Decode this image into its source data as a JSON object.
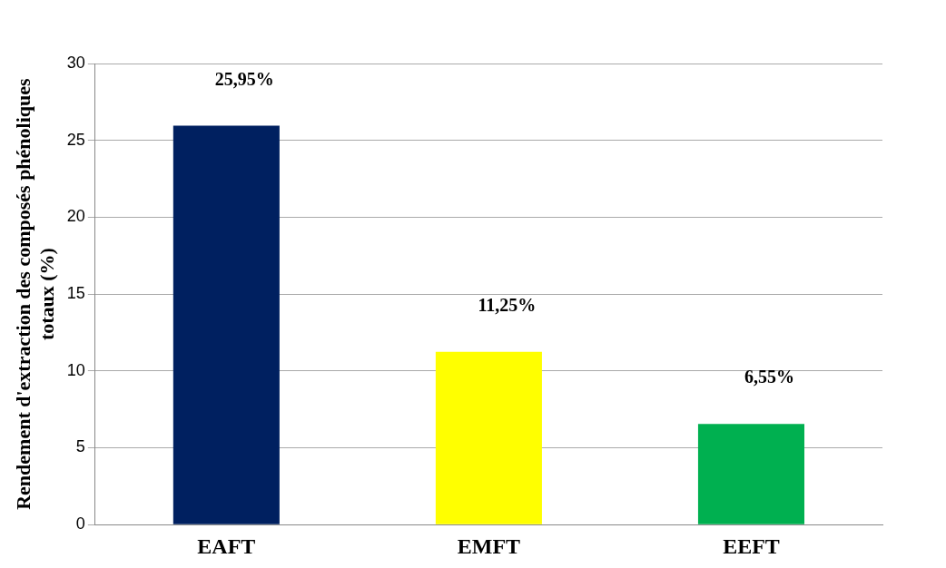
{
  "chart_data": {
    "type": "bar",
    "ylabel": "Rendement d'extraction des composés phénoliques totaux (%)",
    "categories": [
      "EAFT",
      "EMFT",
      "EEFT"
    ],
    "values": [
      25.95,
      11.25,
      6.55
    ],
    "colors": [
      "#002060",
      "#ffff00",
      "#00b050"
    ],
    "value_labels": [
      "25,95%",
      "11,25%",
      "6,55%"
    ],
    "ylim": [
      0,
      30
    ],
    "yticks": [
      0,
      5,
      10,
      15,
      20,
      25,
      30
    ],
    "grid": "y",
    "legend": false
  }
}
